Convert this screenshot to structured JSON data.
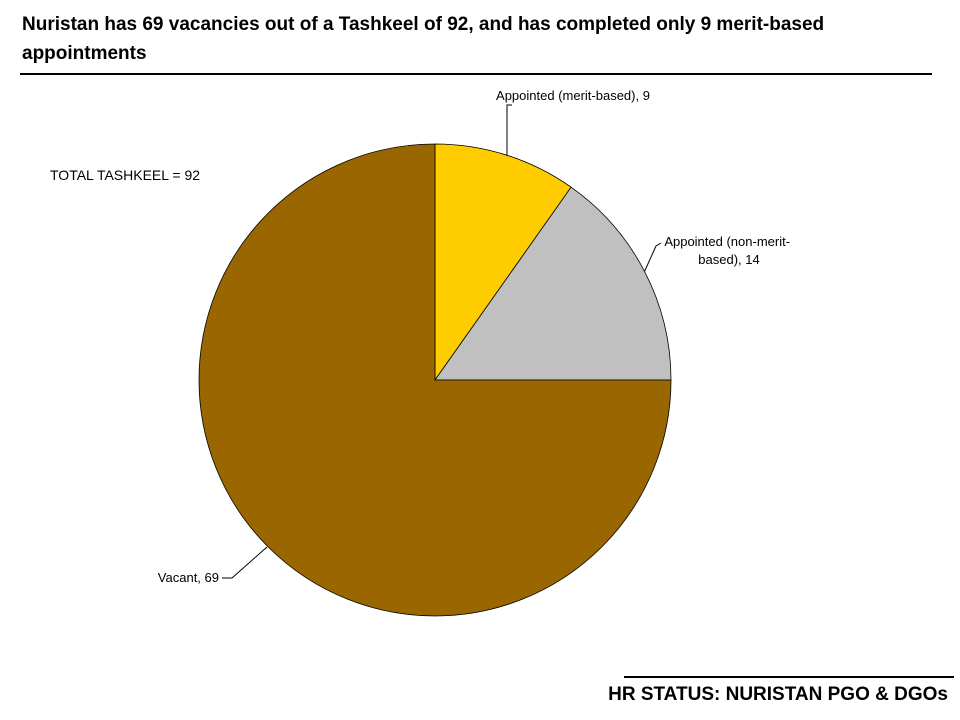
{
  "header": {
    "title": "Nuristan has 69 vacancies out of a Tashkeel of 92, and has completed only 9 merit-based appointments"
  },
  "annotation": {
    "total": "TOTAL TASHKEEL = 92"
  },
  "footer": {
    "label": "HR STATUS: NURISTAN PGO & DGOs"
  },
  "chart_data": {
    "type": "pie",
    "title": "Nuristan has 69 vacancies out of a Tashkeel of 92, and has completed only 9 merit-based appointments",
    "total": 92,
    "slices": [
      {
        "label": "Appointed (merit-based), 9",
        "category": "Appointed (merit-based)",
        "value": 9,
        "color": "#FFCC00"
      },
      {
        "label": "Appointed (non-merit-based), 14",
        "category": "Appointed (non-merit-based)",
        "value": 14,
        "color": "#C0C0C0"
      },
      {
        "label": "Vacant, 69",
        "category": "Vacant",
        "value": 69,
        "color": "#996600"
      }
    ]
  }
}
